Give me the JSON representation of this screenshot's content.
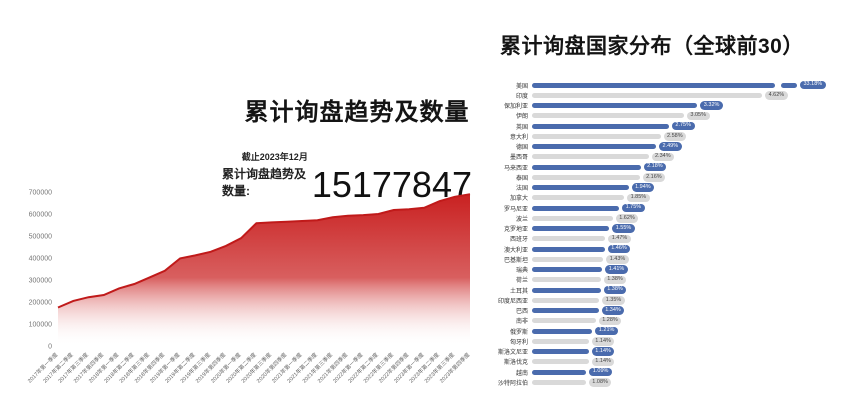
{
  "colors": {
    "bar_blue": "#4a6bad",
    "bar_gray": "#d9d9d9",
    "area_red": "#c92121",
    "area_red_line": "#c01a1a",
    "axis_text": "#777777",
    "x_tick_text": "#666666",
    "title_text": "#141414"
  },
  "chart_data": [
    {
      "type": "area",
      "title": "累计询盘趋势及数量",
      "as_of": "截止2023年12月",
      "total_label": "累计询盘趋势及数量:",
      "total_value": "15177847",
      "ylabel": "",
      "xlabel": "",
      "ylim": [
        0,
        700000
      ],
      "yticks": [
        0,
        100000,
        200000,
        300000,
        400000,
        500000,
        600000,
        700000
      ],
      "grid": false,
      "legend": "none",
      "categories": [
        "2017年第一季度",
        "2017年第二季度",
        "2017年第三季度",
        "2017年第四季度",
        "2018年第一季度",
        "2018年第二季度",
        "2018年第三季度",
        "2018年第四季度",
        "2019年第一季度",
        "2019年第二季度",
        "2019年第三季度",
        "2019年第四季度",
        "2020年第一季度",
        "2020年第二季度",
        "2020年第三季度",
        "2020年第四季度",
        "2021年第一季度",
        "2021年第二季度",
        "2021年第三季度",
        "2021年第四季度",
        "2022年第一季度",
        "2022年第二季度",
        "2022年第三季度",
        "2022年第四季度",
        "2023年第一季度",
        "2023年第二季度",
        "2023年第三季度",
        "2023年第四季度"
      ],
      "values": [
        175000,
        205000,
        222000,
        232000,
        262000,
        282000,
        312000,
        342000,
        398000,
        412000,
        428000,
        455000,
        490000,
        558000,
        562000,
        565000,
        568000,
        572000,
        585000,
        592000,
        595000,
        600000,
        618000,
        622000,
        628000,
        658000,
        678000,
        690000
      ]
    },
    {
      "type": "bar",
      "orientation": "horizontal",
      "title": "累计询盘国家分布（全球前30）",
      "value_unit": "%",
      "note_first_bar": "truncated-with-axis-break",
      "rows": [
        {
          "label": "美国",
          "value": 33.18,
          "pct": "33.18%",
          "color": "blue",
          "truncated": true
        },
        {
          "label": "印度",
          "value": 4.62,
          "pct": "4.62%",
          "color": "gray"
        },
        {
          "label": "保加利亚",
          "value": 3.32,
          "pct": "3.32%",
          "color": "blue"
        },
        {
          "label": "伊朗",
          "value": 3.05,
          "pct": "3.05%",
          "color": "gray"
        },
        {
          "label": "英国",
          "value": 2.75,
          "pct": "2.75%",
          "color": "blue"
        },
        {
          "label": "意大利",
          "value": 2.58,
          "pct": "2.58%",
          "color": "gray"
        },
        {
          "label": "德国",
          "value": 2.49,
          "pct": "2.49%",
          "color": "blue"
        },
        {
          "label": "墨西哥",
          "value": 2.34,
          "pct": "2.34%",
          "color": "gray"
        },
        {
          "label": "马来西亚",
          "value": 2.18,
          "pct": "2.18%",
          "color": "blue"
        },
        {
          "label": "泰国",
          "value": 2.16,
          "pct": "2.16%",
          "color": "gray"
        },
        {
          "label": "法国",
          "value": 1.94,
          "pct": "1.94%",
          "color": "blue"
        },
        {
          "label": "加拿大",
          "value": 1.85,
          "pct": "1.85%",
          "color": "gray"
        },
        {
          "label": "罗马尼亚",
          "value": 1.75,
          "pct": "1.75%",
          "color": "blue"
        },
        {
          "label": "波兰",
          "value": 1.62,
          "pct": "1.62%",
          "color": "gray"
        },
        {
          "label": "克罗地亚",
          "value": 1.55,
          "pct": "1.55%",
          "color": "blue"
        },
        {
          "label": "西班牙",
          "value": 1.47,
          "pct": "1.47%",
          "color": "gray"
        },
        {
          "label": "澳大利亚",
          "value": 1.46,
          "pct": "1.46%",
          "color": "blue"
        },
        {
          "label": "巴基斯坦",
          "value": 1.43,
          "pct": "1.43%",
          "color": "gray"
        },
        {
          "label": "瑞典",
          "value": 1.41,
          "pct": "1.41%",
          "color": "blue"
        },
        {
          "label": "荷兰",
          "value": 1.38,
          "pct": "1.38%",
          "color": "gray"
        },
        {
          "label": "土耳其",
          "value": 1.38,
          "pct": "1.38%",
          "color": "blue"
        },
        {
          "label": "印度尼西亚",
          "value": 1.35,
          "pct": "1.35%",
          "color": "gray"
        },
        {
          "label": "巴西",
          "value": 1.34,
          "pct": "1.34%",
          "color": "blue"
        },
        {
          "label": "南非",
          "value": 1.28,
          "pct": "1.28%",
          "color": "gray"
        },
        {
          "label": "俄罗斯",
          "value": 1.21,
          "pct": "1.21%",
          "color": "blue"
        },
        {
          "label": "匈牙利",
          "value": 1.14,
          "pct": "1.14%",
          "color": "gray"
        },
        {
          "label": "斯洛文尼亚",
          "value": 1.14,
          "pct": "1.14%",
          "color": "blue"
        },
        {
          "label": "斯洛伐克",
          "value": 1.14,
          "pct": "1.14%",
          "color": "gray"
        },
        {
          "label": "越南",
          "value": 1.09,
          "pct": "1.09%",
          "color": "blue"
        },
        {
          "label": "沙特阿拉伯",
          "value": 1.08,
          "pct": "1.08%",
          "color": "gray"
        }
      ]
    }
  ]
}
